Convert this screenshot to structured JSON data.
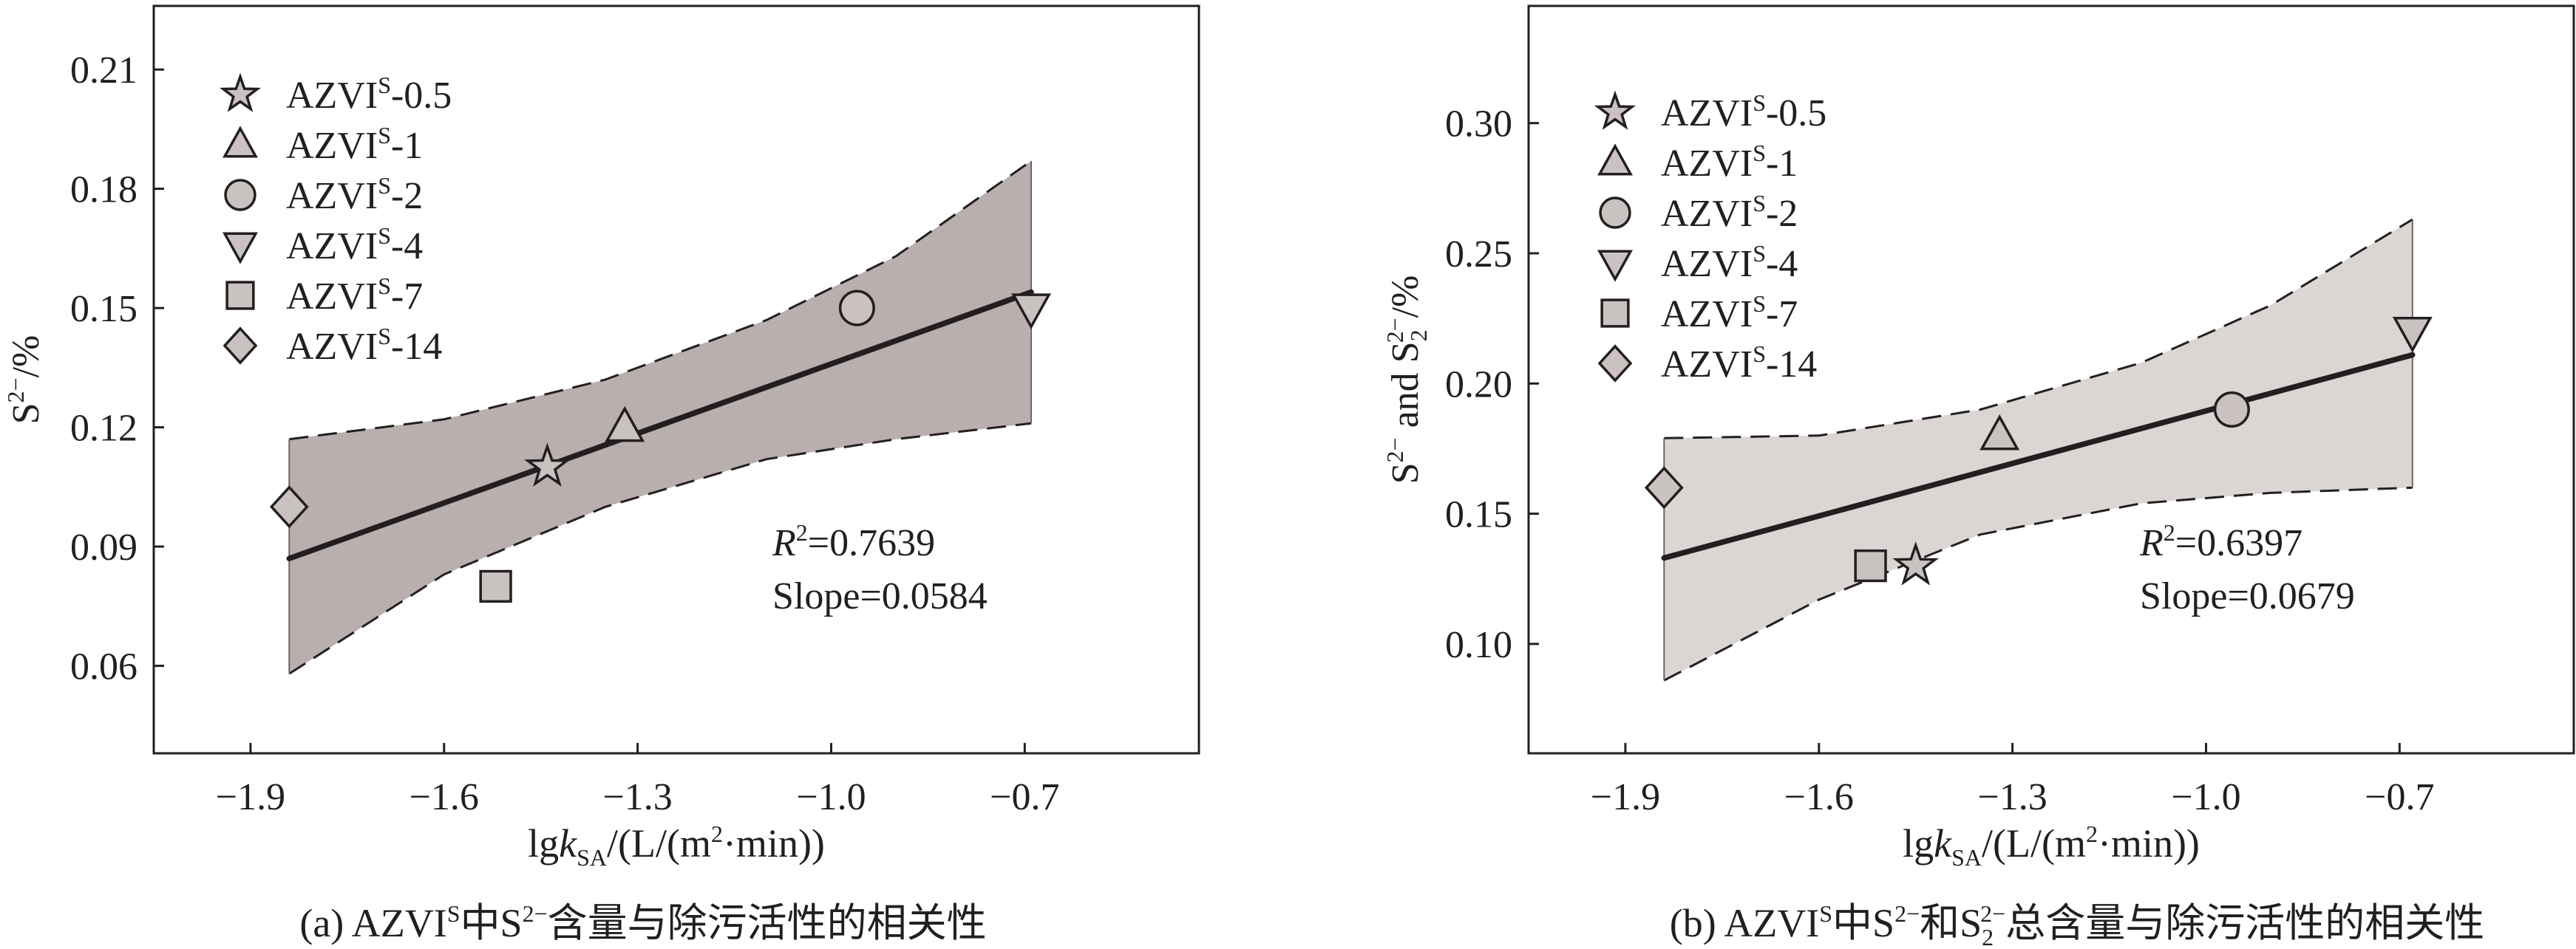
{
  "chart_data": [
    {
      "type": "scatter",
      "caption_parts": [
        "(a) AZVI",
        "S",
        "中S",
        "2−",
        "含量与除污活性的相关性"
      ],
      "xlabel_parts": [
        "lg",
        "k",
        "SA",
        "/(L/(m",
        "2",
        "·min))"
      ],
      "ylabel_parts": [
        "S",
        "2−",
        "/%"
      ],
      "xlim": [
        -2.05,
        -0.43
      ],
      "ylim": [
        0.038,
        0.226
      ],
      "x_ticks": [
        -1.9,
        -1.6,
        -1.3,
        -1.0,
        -0.7
      ],
      "x_tick_labels": [
        "−1.9",
        "−1.6",
        "−1.3",
        "−1.0",
        "−0.7"
      ],
      "y_ticks": [
        0.06,
        0.09,
        0.12,
        0.15,
        0.18,
        0.21
      ],
      "y_tick_labels": [
        "0.06",
        "0.09",
        "0.12",
        "0.15",
        "0.18",
        "0.21"
      ],
      "legend_position": "top-left",
      "series": [
        {
          "name_base": "AZVI",
          "name_sup": "S",
          "name_suffix": "-0.5",
          "marker": "star",
          "x": [
            -1.44
          ],
          "y": [
            0.11
          ]
        },
        {
          "name_base": "AZVI",
          "name_sup": "S",
          "name_suffix": "-1",
          "marker": "triangle-up",
          "x": [
            -1.32
          ],
          "y": [
            0.12
          ]
        },
        {
          "name_base": "AZVI",
          "name_sup": "S",
          "name_suffix": "-2",
          "marker": "circle",
          "x": [
            -0.96
          ],
          "y": [
            0.15
          ]
        },
        {
          "name_base": "AZVI",
          "name_sup": "S",
          "name_suffix": "-4",
          "marker": "triangle-down",
          "x": [
            -0.69
          ],
          "y": [
            0.15
          ]
        },
        {
          "name_base": "AZVI",
          "name_sup": "S",
          "name_suffix": "-7",
          "marker": "square",
          "x": [
            -1.52
          ],
          "y": [
            0.08
          ]
        },
        {
          "name_base": "AZVI",
          "name_sup": "S",
          "name_suffix": "-14",
          "marker": "diamond",
          "x": [
            -1.84
          ],
          "y": [
            0.1
          ]
        }
      ],
      "fit_line": {
        "x": [
          -1.84,
          -0.69
        ],
        "y": [
          0.087,
          0.154
        ]
      },
      "confidence_upper": {
        "x": [
          -1.84,
          -1.6,
          -1.35,
          -1.1,
          -0.9,
          -0.69
        ],
        "y": [
          0.117,
          0.122,
          0.132,
          0.147,
          0.163,
          0.187
        ]
      },
      "confidence_lower": {
        "x": [
          -1.84,
          -1.6,
          -1.35,
          -1.1,
          -0.9,
          -0.69
        ],
        "y": [
          0.058,
          0.083,
          0.1,
          0.112,
          0.117,
          0.121
        ]
      },
      "band_color": "#b8afae",
      "annotation": {
        "r2_letter": "R",
        "r2_sup": "2",
        "r2_value": "=0.7639",
        "slope": "Slope=0.0584"
      }
    },
    {
      "type": "scatter",
      "caption_parts": [
        "(b) AZVI",
        "S",
        "中S",
        "2−",
        "和S",
        "2",
        "2−",
        "总含量与除污活性的相关性"
      ],
      "xlabel_parts": [
        "lg",
        "k",
        "SA",
        "/(L/(m",
        "2",
        "·min))"
      ],
      "ylabel_parts": [
        "S",
        "2−",
        " and S",
        "2",
        "2−",
        "/%"
      ],
      "xlim": [
        -2.05,
        -0.43
      ],
      "ylim": [
        0.058,
        0.345
      ],
      "x_ticks": [
        -1.9,
        -1.6,
        -1.3,
        -1.0,
        -0.7
      ],
      "x_tick_labels": [
        "−1.9",
        "−1.6",
        "−1.3",
        "−1.0",
        "−0.7"
      ],
      "y_ticks": [
        0.1,
        0.15,
        0.2,
        0.25,
        0.3
      ],
      "y_tick_labels": [
        "0.10",
        "0.15",
        "0.20",
        "0.25",
        "0.30"
      ],
      "legend_position": "top-left",
      "series": [
        {
          "name_base": "AZVI",
          "name_sup": "S",
          "name_suffix": "-0.5",
          "marker": "star",
          "x": [
            -1.45
          ],
          "y": [
            0.13
          ]
        },
        {
          "name_base": "AZVI",
          "name_sup": "S",
          "name_suffix": "-1",
          "marker": "triangle-up",
          "x": [
            -1.32
          ],
          "y": [
            0.18
          ]
        },
        {
          "name_base": "AZVI",
          "name_sup": "S",
          "name_suffix": "-2",
          "marker": "circle",
          "x": [
            -0.96
          ],
          "y": [
            0.19
          ]
        },
        {
          "name_base": "AZVI",
          "name_sup": "S",
          "name_suffix": "-4",
          "marker": "triangle-down",
          "x": [
            -0.68
          ],
          "y": [
            0.22
          ]
        },
        {
          "name_base": "AZVI",
          "name_sup": "S",
          "name_suffix": "-7",
          "marker": "square",
          "x": [
            -1.52
          ],
          "y": [
            0.13
          ]
        },
        {
          "name_base": "AZVI",
          "name_sup": "S",
          "name_suffix": "-14",
          "marker": "diamond",
          "x": [
            -1.84
          ],
          "y": [
            0.16
          ]
        }
      ],
      "fit_line": {
        "x": [
          -1.84,
          -0.68
        ],
        "y": [
          0.133,
          0.211
        ]
      },
      "confidence_upper": {
        "x": [
          -1.84,
          -1.6,
          -1.35,
          -1.1,
          -0.9,
          -0.68
        ],
        "y": [
          0.179,
          0.18,
          0.19,
          0.208,
          0.23,
          0.263
        ]
      },
      "confidence_lower": {
        "x": [
          -1.84,
          -1.6,
          -1.35,
          -1.1,
          -0.9,
          -0.68
        ],
        "y": [
          0.086,
          0.117,
          0.142,
          0.154,
          0.158,
          0.16
        ]
      },
      "band_color": "#dbd5d4",
      "annotation": {
        "r2_letter": "R",
        "r2_sup": "2",
        "r2_value": "=0.6397",
        "slope": "Slope=0.0679"
      }
    }
  ]
}
